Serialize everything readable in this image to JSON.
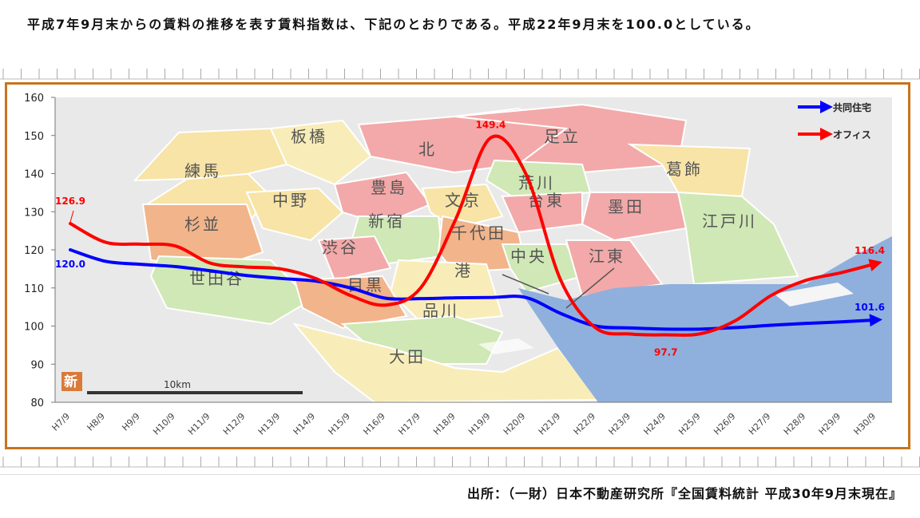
{
  "intro_text": "平成7年9月末からの賃料の推移を表す賃料指数は、下記のとおりである。平成22年9月末を100.0としている。",
  "source_text": "出所：（一財）日本不動産研究所『全国賃料統計 平成30年9月末現在』",
  "map": {
    "labels": [
      "板橋",
      "北",
      "足立",
      "練馬",
      "葛飾",
      "荒川",
      "豊島",
      "中野",
      "文京",
      "台東",
      "墨田",
      "新宿",
      "杉並",
      "江戸川",
      "千代田",
      "渋谷",
      "港",
      "中央",
      "江東",
      "世田谷",
      "目黒",
      "品川",
      "大田"
    ],
    "scale_label": "10km",
    "badge": "新",
    "colors": {
      "sea": "#8fb0dc",
      "land_bg": "#e8e8e8"
    }
  },
  "chart_data": {
    "type": "line",
    "categories": [
      "H7/9",
      "H8/9",
      "H9/9",
      "H10/9",
      "H11/9",
      "H12/9",
      "H13/9",
      "H14/9",
      "H15/9",
      "H16/9",
      "H17/9",
      "H18/9",
      "H19/9",
      "H20/9",
      "H21/9",
      "H22/9",
      "H23/9",
      "H24/9",
      "H25/9",
      "H26/9",
      "H27/9",
      "H28/9",
      "H29/9",
      "H30/9"
    ],
    "ylim": [
      80,
      160
    ],
    "yticks": [
      80,
      90,
      100,
      110,
      120,
      130,
      140,
      150,
      160
    ],
    "series": [
      {
        "name": "共同住宅",
        "color": "#0000ff",
        "values": [
          120.0,
          117.0,
          116.2,
          115.6,
          114.5,
          113.3,
          112.5,
          111.8,
          110.0,
          107.3,
          107.2,
          107.4,
          107.5,
          107.5,
          103.3,
          100.0,
          99.5,
          99.2,
          99.2,
          99.6,
          100.2,
          100.7,
          101.1,
          101.6
        ],
        "labels": [
          {
            "index": 0,
            "text": "120.0"
          },
          {
            "index": 23,
            "text": "101.6"
          }
        ]
      },
      {
        "name": "オフィス",
        "color": "#ff0000",
        "values": [
          126.9,
          122.0,
          121.5,
          121.0,
          116.5,
          115.5,
          115.0,
          112.5,
          108.0,
          105.5,
          110.0,
          128.0,
          149.4,
          140.0,
          112.0,
          99.5,
          97.9,
          97.7,
          98.0,
          101.5,
          108.0,
          112.0,
          114.0,
          116.4
        ],
        "labels": [
          {
            "index": 0,
            "text": "126.9"
          },
          {
            "index": 12,
            "text": "149.4"
          },
          {
            "index": 17,
            "text": "97.7"
          },
          {
            "index": 23,
            "text": "116.4"
          }
        ]
      }
    ],
    "legend_placement": "top-right"
  }
}
